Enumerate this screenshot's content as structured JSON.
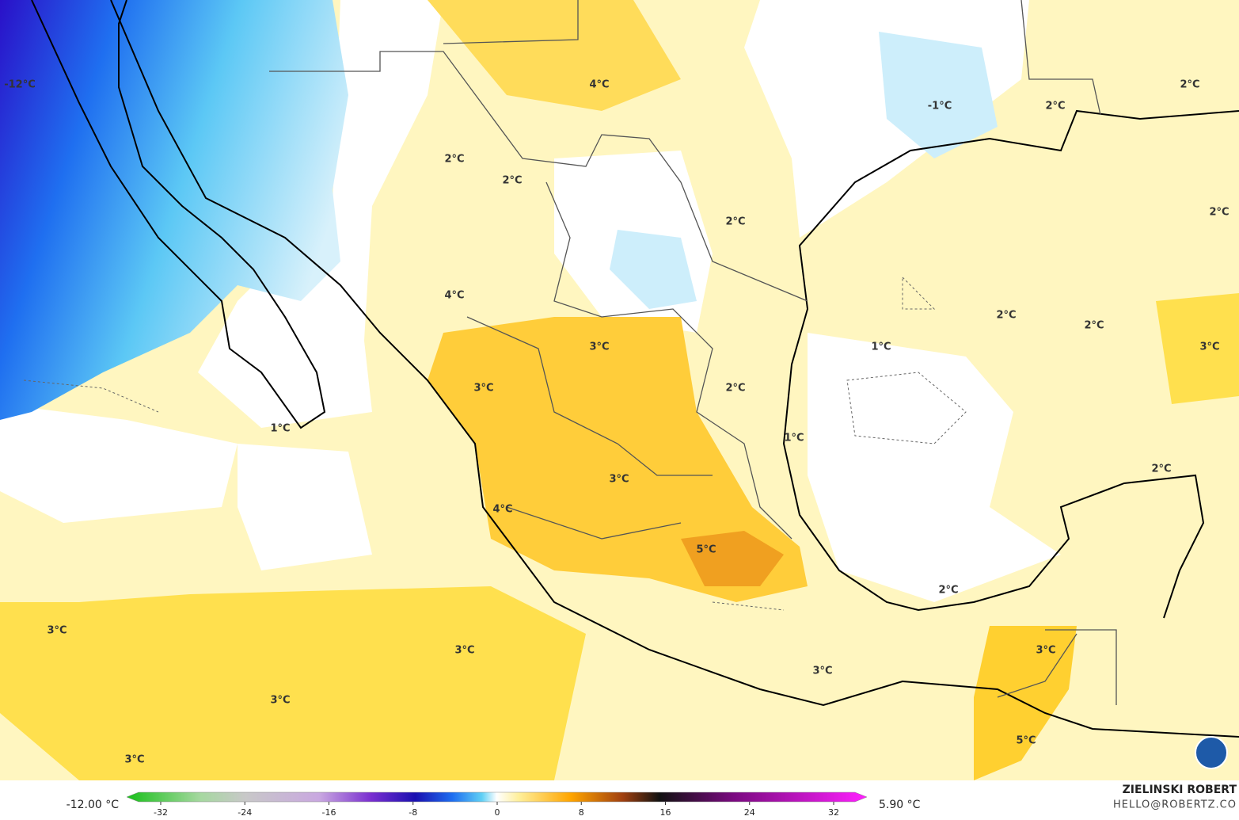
{
  "map": {
    "labels": [
      "-12°C",
      "4°C",
      "-1°C",
      "2°C",
      "2°C",
      "2°C",
      "2°C",
      "2°C",
      "2°C",
      "4°C",
      "3°C",
      "1°C",
      "2°C",
      "2°C",
      "3°C",
      "3°C",
      "2°C",
      "1°C",
      "1°C",
      "3°C",
      "2°C",
      "4°C",
      "5°C",
      "2°C",
      "3°C",
      "3°C",
      "3°C",
      "3°C",
      "3°C",
      "3°C",
      "5°C"
    ],
    "colorbar": {
      "min_label": "-12.00 °C",
      "max_label": "5.90 °C",
      "ticks": [
        -32,
        -24,
        -16,
        -8,
        0,
        8,
        16,
        24,
        32
      ]
    },
    "credit": {
      "name": "ZIELINSKI ROBERT",
      "email": "HELLO@ROBERTZ.CO"
    }
  }
}
